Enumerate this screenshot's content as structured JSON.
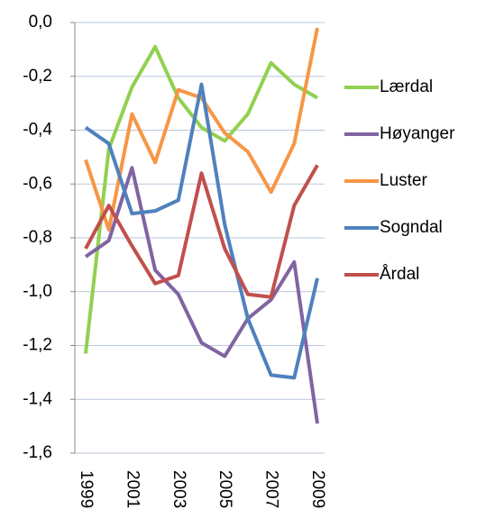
{
  "chart_data": {
    "type": "line",
    "categories": [
      "1999",
      null,
      "2001",
      null,
      "2003",
      null,
      "2005",
      null,
      "2007",
      null,
      "2009"
    ],
    "series": [
      {
        "name": "Lærdal",
        "color": "#92d050",
        "values": [
          -1.23,
          -0.47,
          -0.24,
          -0.09,
          -0.28,
          -0.39,
          -0.44,
          -0.34,
          -0.15,
          -0.23,
          -0.28
        ]
      },
      {
        "name": "Høyanger",
        "color": "#8064a2",
        "values": [
          -0.87,
          -0.81,
          -0.54,
          -0.92,
          -1.01,
          -1.19,
          -1.24,
          -1.1,
          -1.03,
          -0.89,
          -1.49
        ]
      },
      {
        "name": "Luster",
        "color": "#f79646",
        "values": [
          -0.51,
          -0.77,
          -0.34,
          -0.52,
          -0.25,
          -0.28,
          -0.41,
          -0.48,
          -0.63,
          -0.45,
          -0.02
        ]
      },
      {
        "name": "Sogndal",
        "color": "#4f81bd",
        "values": [
          -0.39,
          -0.45,
          -0.71,
          -0.7,
          -0.66,
          -0.23,
          -0.75,
          -1.1,
          -1.31,
          -1.32,
          -0.95
        ]
      },
      {
        "name": "Årdal",
        "color": "#c0504d",
        "values": [
          -0.84,
          -0.68,
          -0.83,
          -0.97,
          -0.94,
          -0.56,
          -0.84,
          -1.01,
          -1.02,
          -0.68,
          -0.53
        ]
      }
    ],
    "ylim": [
      -1.6,
      0
    ],
    "yticks": [
      {
        "value": -1.6,
        "label": "-1,6"
      },
      {
        "value": -1.4,
        "label": "-1,4"
      },
      {
        "value": -1.2,
        "label": "-1,2"
      },
      {
        "value": -1.0,
        "label": "-1,0"
      },
      {
        "value": -0.8,
        "label": "-0,8"
      },
      {
        "value": -0.6,
        "label": "-0,6"
      },
      {
        "value": -0.4,
        "label": "-0,4"
      },
      {
        "value": -0.2,
        "label": "-0,2"
      },
      {
        "value": 0,
        "label": "0,0"
      }
    ],
    "grid": true,
    "legend": "right"
  }
}
